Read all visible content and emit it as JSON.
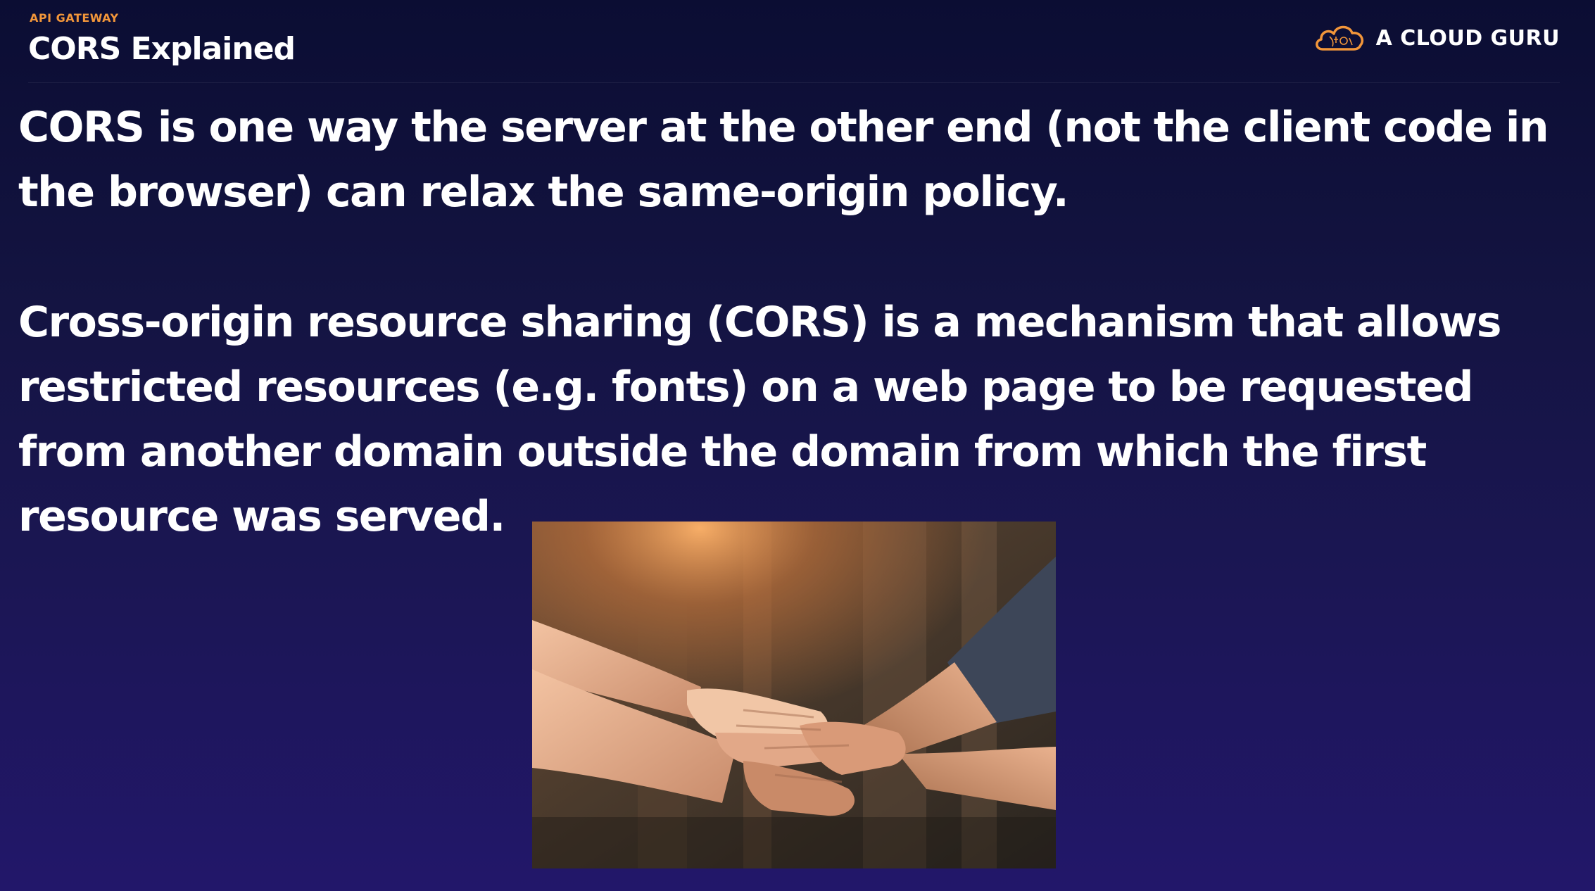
{
  "header": {
    "eyebrow": "API GATEWAY",
    "title": "CORS Explained",
    "brand_name": "A CLOUD GURU",
    "brand_icon": "cloud-logo-icon"
  },
  "content": {
    "paragraph_1": "CORS is one way the server at the other end (not the client code in the browser) can relax the same-origin policy.",
    "paragraph_2": "Cross-origin resource sharing (CORS) is a mechanism that allows restricted resources (e.g. fonts) on a web page to be requested from another domain outside the domain from which the first resource was served."
  },
  "image": {
    "subject": "stacked-hands-photo"
  },
  "colors": {
    "accent": "#f2963a",
    "background_top": "#0b0d33",
    "background_bottom": "#22176a",
    "text": "#ffffff"
  }
}
